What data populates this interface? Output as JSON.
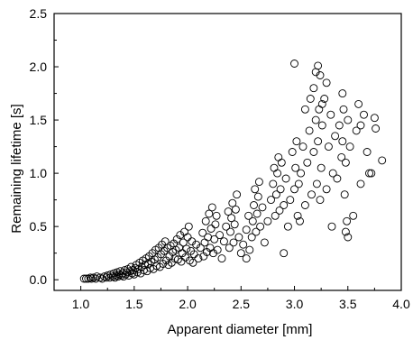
{
  "chart_data": {
    "type": "scatter",
    "title": "",
    "xlabel": "Apparent diameter [mm]",
    "ylabel": "Remaining lifetime [s]",
    "xlim": [
      0.75,
      4.0
    ],
    "ylim": [
      -0.1,
      2.5
    ],
    "xticks": [
      "1.0",
      "1.5",
      "2.0",
      "2.5",
      "3.0",
      "3.5",
      "4.0"
    ],
    "yticks": [
      "0.0",
      "0.5",
      "1.0",
      "1.5",
      "2.0",
      "2.5"
    ],
    "grid": false,
    "legend": "none",
    "marker": "open-circle",
    "x": [
      1.03,
      1.05,
      1.07,
      1.09,
      1.1,
      1.12,
      1.14,
      1.15,
      1.18,
      1.2,
      1.22,
      1.24,
      1.25,
      1.27,
      1.28,
      1.3,
      1.31,
      1.32,
      1.33,
      1.34,
      1.35,
      1.36,
      1.37,
      1.38,
      1.39,
      1.4,
      1.41,
      1.42,
      1.43,
      1.44,
      1.45,
      1.46,
      1.47,
      1.48,
      1.49,
      1.5,
      1.51,
      1.52,
      1.53,
      1.54,
      1.55,
      1.56,
      1.57,
      1.58,
      1.59,
      1.6,
      1.61,
      1.62,
      1.63,
      1.64,
      1.65,
      1.66,
      1.67,
      1.68,
      1.69,
      1.7,
      1.71,
      1.72,
      1.73,
      1.74,
      1.75,
      1.76,
      1.77,
      1.78,
      1.79,
      1.8,
      1.81,
      1.82,
      1.83,
      1.84,
      1.85,
      1.86,
      1.87,
      1.88,
      1.89,
      1.9,
      1.91,
      1.92,
      1.93,
      1.94,
      1.95,
      1.96,
      1.97,
      1.98,
      1.99,
      2.0,
      2.01,
      2.02,
      2.03,
      2.04,
      2.05,
      2.06,
      2.08,
      2.1,
      2.12,
      2.14,
      2.15,
      2.16,
      2.17,
      2.18,
      2.19,
      2.2,
      2.21,
      2.22,
      2.23,
      2.24,
      2.25,
      2.26,
      2.27,
      2.28,
      2.3,
      2.32,
      2.34,
      2.36,
      2.38,
      2.39,
      2.4,
      2.41,
      2.42,
      2.43,
      2.44,
      2.45,
      2.46,
      2.48,
      2.5,
      2.52,
      2.55,
      2.57,
      2.58,
      2.6,
      2.61,
      2.62,
      2.63,
      2.64,
      2.65,
      2.66,
      2.67,
      2.68,
      2.7,
      2.72,
      2.75,
      2.78,
      2.8,
      2.81,
      2.82,
      2.83,
      2.84,
      2.85,
      2.86,
      2.87,
      2.88,
      2.9,
      2.92,
      2.94,
      2.96,
      2.98,
      3.0,
      3.01,
      3.02,
      3.03,
      3.04,
      3.05,
      3.06,
      3.08,
      3.1,
      3.12,
      3.14,
      3.16,
      3.18,
      3.2,
      3.21,
      3.22,
      3.23,
      3.24,
      3.25,
      3.26,
      3.28,
      3.3,
      3.32,
      3.34,
      3.36,
      3.38,
      3.4,
      3.42,
      3.44,
      3.46,
      3.47,
      3.48,
      3.5,
      3.52,
      3.55,
      3.58,
      3.6,
      3.62,
      3.65,
      3.68,
      3.72,
      3.75,
      3.82,
      3.0,
      3.2,
      3.24,
      3.22,
      3.18,
      3.1,
      3.3,
      3.45,
      3.26,
      3.15,
      3.49,
      3.62,
      3.76,
      3.45,
      3.7,
      3.48,
      3.5,
      2.55,
      2.9,
      3.35
    ],
    "y": [
      0.01,
      0.01,
      0.01,
      0.02,
      0.01,
      0.02,
      0.01,
      0.03,
      0.02,
      0.01,
      0.03,
      0.02,
      0.04,
      0.02,
      0.05,
      0.03,
      0.06,
      0.02,
      0.04,
      0.07,
      0.03,
      0.05,
      0.08,
      0.04,
      0.06,
      0.03,
      0.09,
      0.05,
      0.07,
      0.1,
      0.04,
      0.08,
      0.12,
      0.06,
      0.09,
      0.05,
      0.11,
      0.14,
      0.07,
      0.1,
      0.16,
      0.06,
      0.12,
      0.18,
      0.09,
      0.14,
      0.2,
      0.08,
      0.15,
      0.22,
      0.11,
      0.17,
      0.25,
      0.1,
      0.19,
      0.28,
      0.13,
      0.21,
      0.3,
      0.12,
      0.24,
      0.33,
      0.15,
      0.27,
      0.36,
      0.18,
      0.3,
      0.14,
      0.22,
      0.32,
      0.16,
      0.26,
      0.34,
      0.2,
      0.28,
      0.38,
      0.19,
      0.3,
      0.42,
      0.17,
      0.25,
      0.35,
      0.45,
      0.21,
      0.29,
      0.4,
      0.5,
      0.18,
      0.27,
      0.36,
      0.16,
      0.24,
      0.33,
      0.2,
      0.3,
      0.44,
      0.22,
      0.35,
      0.55,
      0.26,
      0.4,
      0.62,
      0.3,
      0.48,
      0.68,
      0.25,
      0.38,
      0.52,
      0.6,
      0.28,
      0.42,
      0.2,
      0.36,
      0.5,
      0.64,
      0.3,
      0.45,
      0.58,
      0.72,
      0.35,
      0.52,
      0.66,
      0.8,
      0.4,
      0.25,
      0.33,
      0.47,
      0.6,
      0.28,
      0.4,
      0.55,
      0.7,
      0.85,
      0.45,
      0.62,
      0.78,
      0.92,
      0.5,
      0.68,
      0.35,
      0.55,
      0.75,
      0.9,
      1.05,
      0.6,
      0.8,
      1.0,
      1.15,
      0.65,
      0.85,
      1.1,
      0.7,
      0.95,
      0.5,
      0.75,
      1.2,
      0.85,
      1.05,
      1.3,
      0.6,
      0.9,
      0.55,
      1.0,
      1.25,
      0.7,
      1.1,
      1.4,
      0.8,
      1.2,
      1.5,
      0.9,
      1.3,
      1.6,
      0.75,
      1.05,
      1.45,
      1.7,
      0.85,
      1.25,
      1.55,
      1.0,
      1.35,
      0.95,
      1.45,
      1.15,
      1.6,
      0.8,
      1.1,
      1.5,
      1.25,
      0.6,
      1.4,
      1.65,
      0.9,
      1.55,
      1.2,
      1.0,
      1.52,
      1.12,
      2.03,
      1.95,
      1.92,
      2.01,
      1.8,
      1.6,
      1.85,
      1.75,
      1.65,
      1.7,
      0.55,
      1.45,
      1.42,
      1.3,
      1.0,
      0.45,
      0.4,
      0.2,
      0.25,
      0.5
    ]
  }
}
